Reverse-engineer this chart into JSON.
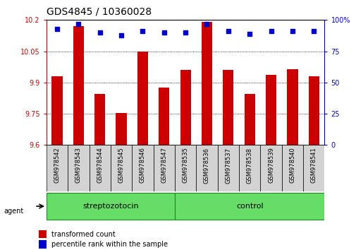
{
  "title": "GDS4845 / 10360028",
  "samples": [
    "GSM978542",
    "GSM978543",
    "GSM978544",
    "GSM978545",
    "GSM978546",
    "GSM978547",
    "GSM978535",
    "GSM978536",
    "GSM978537",
    "GSM978538",
    "GSM978539",
    "GSM978540",
    "GSM978541"
  ],
  "transformed_count": [
    9.93,
    10.17,
    9.845,
    9.755,
    10.048,
    9.875,
    9.96,
    10.19,
    9.96,
    9.845,
    9.935,
    9.965,
    9.93
  ],
  "percentile_rank": [
    93,
    97,
    90,
    88,
    91,
    90,
    90,
    97,
    91,
    89,
    91,
    91,
    91
  ],
  "y_min": 9.6,
  "y_max": 10.2,
  "y_ticks": [
    9.6,
    9.75,
    9.9,
    10.05,
    10.2
  ],
  "y_right_ticks": [
    0,
    25,
    50,
    75,
    100
  ],
  "bar_color": "#cc0000",
  "dot_color": "#0000cc",
  "group1_label": "streptozotocin",
  "group2_label": "control",
  "group1_indices": [
    0,
    1,
    2,
    3,
    4,
    5
  ],
  "group2_indices": [
    6,
    7,
    8,
    9,
    10,
    11,
    12
  ],
  "legend_bar_label": "transformed count",
  "legend_dot_label": "percentile rank within the sample",
  "agent_label": "agent",
  "background_color": "#ffffff",
  "tick_area_bg": "#d3d3d3",
  "group_bg": "#66dd66",
  "group_border": "#228822",
  "title_fontsize": 10,
  "tick_fontsize": 7,
  "sample_fontsize": 6,
  "legend_fontsize": 7,
  "group_fontsize": 8
}
